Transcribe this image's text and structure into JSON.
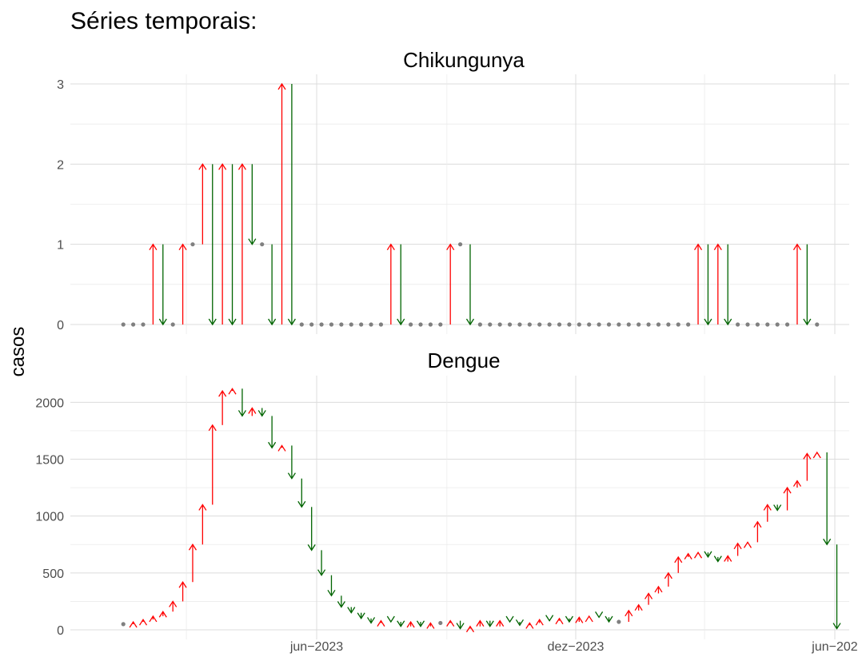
{
  "page_heading": "Séries temporais:",
  "ylabel": "casos",
  "x_ticks": [
    "jun−2023",
    "dez−2023",
    "jun−202"
  ],
  "colors": {
    "up": "#ff0000",
    "down": "#006400",
    "same": "#808080",
    "grid": "#dcdcdc"
  },
  "chart_data": [
    {
      "type": "line",
      "title": "Chikungunya",
      "ylabel": "casos",
      "ylim": [
        0,
        3
      ],
      "yticks": [
        "0",
        "1",
        "2",
        "3"
      ],
      "x_start_week": "2023-01-01",
      "values": [
        0,
        0,
        0,
        1,
        0,
        0,
        1,
        1,
        2,
        0,
        2,
        0,
        2,
        1,
        1,
        0,
        3,
        0,
        0,
        0,
        0,
        0,
        0,
        0,
        0,
        0,
        0,
        1,
        0,
        0,
        0,
        0,
        0,
        1,
        1,
        0,
        0,
        0,
        0,
        0,
        0,
        0,
        0,
        0,
        0,
        0,
        0,
        0,
        0,
        0,
        0,
        0,
        0,
        0,
        0,
        0,
        0,
        0,
        1,
        0,
        1,
        0,
        0,
        0,
        0,
        0,
        0,
        0,
        1,
        0,
        0
      ],
      "grid": true,
      "legend": "none"
    },
    {
      "type": "line",
      "title": "Dengue",
      "ylabel": "casos",
      "ylim": [
        0,
        2150
      ],
      "yticks": [
        "0",
        "500",
        "1000",
        "1500",
        "2000"
      ],
      "x_start_week": "2023-01-01",
      "values": [
        50,
        70,
        90,
        120,
        160,
        250,
        420,
        750,
        1100,
        1800,
        2100,
        2120,
        1880,
        1950,
        1880,
        1600,
        1620,
        1330,
        1080,
        700,
        480,
        300,
        200,
        150,
        100,
        60,
        80,
        70,
        30,
        70,
        30,
        60,
        60,
        80,
        10,
        30,
        80,
        30,
        80,
        70,
        40,
        60,
        90,
        80,
        100,
        70,
        110,
        120,
        110,
        70,
        70,
        170,
        220,
        320,
        380,
        500,
        640,
        670,
        680,
        640,
        600,
        650,
        760,
        770,
        950,
        1100,
        1050,
        1250,
        1310,
        1550,
        1560,
        750,
        10
      ],
      "grid": true,
      "legend": "none"
    }
  ]
}
